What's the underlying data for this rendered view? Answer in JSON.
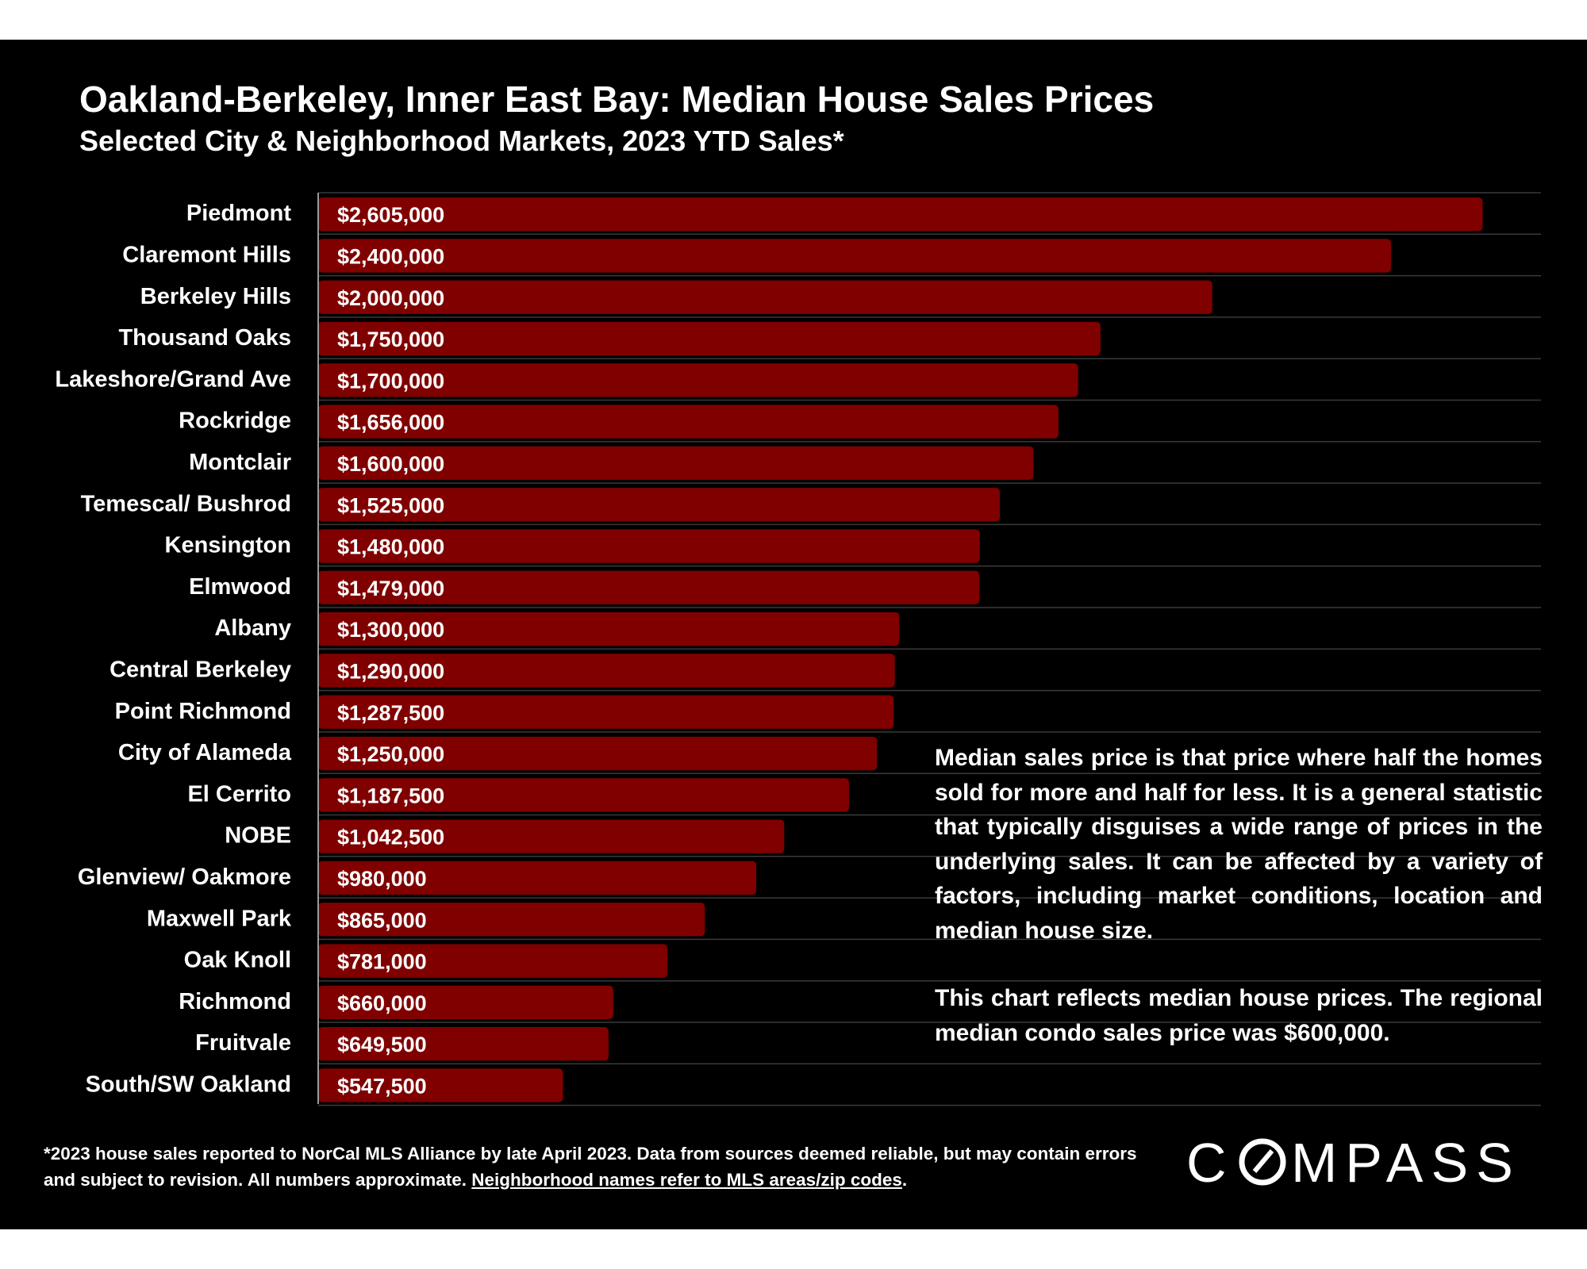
{
  "title": "Oakland-Berkeley, Inner East Bay: Median House Sales Prices",
  "subtitle": "Selected City & Neighborhood Markets, 2023 YTD Sales*",
  "colors": {
    "background": "#000000",
    "bar": "#800000",
    "text": "#ffffff",
    "gridline": "#3a3a3a"
  },
  "chart_data": {
    "type": "bar",
    "orientation": "horizontal",
    "title": "Oakland-Berkeley, Inner East Bay: Median House Sales Prices",
    "subtitle": "Selected City & Neighborhood Markets, 2023 YTD Sales*",
    "xlim": [
      0,
      2700000
    ],
    "grid": true,
    "legend": "none",
    "categories": [
      "Piedmont",
      "Claremont Hills",
      "Berkeley Hills",
      "Thousand Oaks",
      "Lakeshore/Grand Ave",
      "Rockridge",
      "Montclair",
      "Temescal/ Bushrod",
      "Kensington",
      "Elmwood",
      "Albany",
      "Central Berkeley",
      "Point Richmond",
      "City of Alameda",
      "El Cerrito",
      "NOBE",
      "Glenview/ Oakmore",
      "Maxwell Park",
      "Oak Knoll",
      "Richmond",
      "Fruitvale",
      "South/SW Oakland"
    ],
    "values": [
      2605000,
      2400000,
      2000000,
      1750000,
      1700000,
      1656000,
      1600000,
      1525000,
      1480000,
      1479000,
      1300000,
      1290000,
      1287500,
      1250000,
      1187500,
      1042500,
      980000,
      865000,
      781000,
      660000,
      649500,
      547500
    ],
    "data_labels": [
      "$2,605,000",
      "$2,400,000",
      "$2,000,000",
      "$1,750,000",
      "$1,700,000",
      "$1,656,000",
      "$1,600,000",
      "$1,525,000",
      "$1,480,000",
      "$1,479,000",
      "$1,300,000",
      "$1,290,000",
      "$1,287,500",
      "$1,250,000",
      "$1,187,500",
      "$1,042,500",
      "$980,000",
      "$865,000",
      "$781,000",
      "$660,000",
      "$649,500",
      "$547,500"
    ]
  },
  "notes": {
    "paragraph1": "Median sales price is that price where half the homes sold for more and half for less. It is a general statistic that typically disguises a wide range of prices in the underlying sales. It can be affected by a variety of factors, including market conditions, location and median house size.",
    "paragraph2": "This chart reflects median house prices. The regional median condo sales price was $600,000."
  },
  "footnote": {
    "text": "*2023 house sales reported to NorCal MLS Alliance by late April 2023. Data from sources deemed reliable, but may contain errors and subject to revision. All numbers approximate. ",
    "link": "Neighborhood names refer to MLS areas/zip codes",
    "end": "."
  },
  "logo": {
    "text": "COMPASS",
    "icon": "compass-o-icon"
  }
}
